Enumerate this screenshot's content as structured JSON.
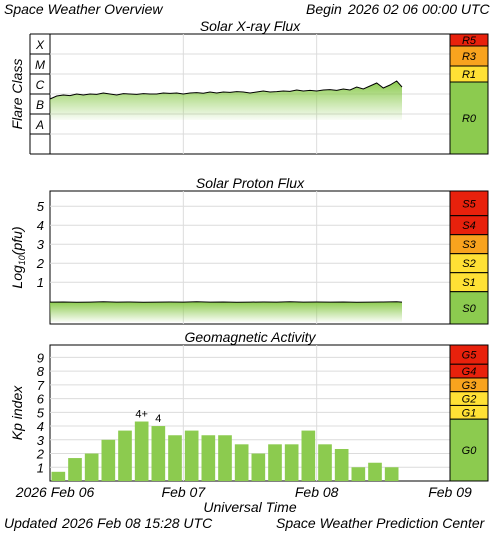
{
  "header": {
    "title": "Space Weather Overview",
    "begin_label": "Begin",
    "begin_value": "2026 02 06 00:00 UTC"
  },
  "footer": {
    "updated_label": "Updated",
    "updated_value": "2026 Feb 08 15:28 UTC",
    "center": "Space Weather Prediction Center",
    "xaxis_title": "Universal Time"
  },
  "time_axis": {
    "ticks": [
      {
        "label": "2026 Feb 06",
        "day": 0
      },
      {
        "label": "Feb 07",
        "day": 1
      },
      {
        "label": "Feb 08",
        "day": 2
      },
      {
        "label": "Feb 09",
        "day": 3
      }
    ],
    "range_days": [
      0,
      3
    ]
  },
  "colors": {
    "data_green": "#8ccb4f",
    "scale_green": "#8ccb4f",
    "scale_yellow": "#ffe135",
    "scale_orange": "#f8a31e",
    "scale_red": "#e8210c",
    "grid": "#dcdcdc"
  },
  "chart_data": [
    {
      "type": "area",
      "title": "Solar X-ray Flux",
      "ylabel": "Flare Class",
      "y_classes": [
        "X",
        "M",
        "C",
        "B",
        "A"
      ],
      "ylim_log10_wm2": [
        -9,
        -3
      ],
      "series": [
        {
          "x_days": [
            0.0,
            0.05,
            0.1,
            0.15,
            0.2,
            0.25,
            0.3,
            0.35,
            0.4,
            0.45,
            0.5,
            0.55,
            0.6,
            0.65,
            0.7,
            0.75,
            0.8,
            0.85,
            0.9,
            0.95,
            1.0,
            1.05,
            1.1,
            1.15,
            1.2,
            1.25,
            1.3,
            1.35,
            1.4,
            1.45,
            1.5,
            1.55,
            1.6,
            1.65,
            1.7,
            1.75,
            1.8,
            1.85,
            1.9,
            1.95,
            2.0,
            2.05,
            2.1,
            2.15,
            2.2,
            2.25,
            2.3,
            2.35,
            2.4,
            2.45,
            2.5,
            2.55,
            2.6,
            2.64
          ],
          "values_log10_wm2": [
            -6.25,
            -6.1,
            -6.05,
            -6.08,
            -6.0,
            -6.05,
            -6.0,
            -6.02,
            -5.95,
            -6.0,
            -6.05,
            -5.98,
            -6.0,
            -6.02,
            -5.98,
            -6.0,
            -6.0,
            -5.95,
            -5.97,
            -5.95,
            -6.0,
            -5.95,
            -5.93,
            -5.96,
            -5.9,
            -5.95,
            -5.9,
            -5.92,
            -5.88,
            -5.9,
            -5.95,
            -5.9,
            -5.85,
            -5.9,
            -5.88,
            -5.85,
            -5.87,
            -5.8,
            -5.85,
            -5.82,
            -5.85,
            -5.8,
            -5.78,
            -5.82,
            -5.75,
            -5.8,
            -5.65,
            -5.75,
            -5.6,
            -5.45,
            -5.7,
            -5.55,
            -5.35,
            -5.65
          ]
        }
      ],
      "scale": [
        {
          "label": "R5",
          "color": "red"
        },
        {
          "label": "R3",
          "color": "orange"
        },
        {
          "label": "R1",
          "color": "yellow"
        },
        {
          "label": "R0",
          "color": "green"
        }
      ]
    },
    {
      "type": "area",
      "title": "Solar Proton Flux",
      "ylabel": "Log10(pfu)",
      "ylabel_base": "Log",
      "ylabel_sub": "10",
      "ylabel_unit": "(pfu)",
      "yticks": [
        1,
        2,
        3,
        4,
        5
      ],
      "ylim": [
        -1.2,
        5.8
      ],
      "series": [
        {
          "x_days": [
            0.0,
            0.1,
            0.2,
            0.3,
            0.4,
            0.5,
            0.6,
            0.7,
            0.8,
            0.9,
            1.0,
            1.1,
            1.2,
            1.3,
            1.4,
            1.5,
            1.6,
            1.7,
            1.8,
            1.9,
            2.0,
            2.1,
            2.2,
            2.3,
            2.4,
            2.5,
            2.6,
            2.64
          ],
          "values": [
            -0.05,
            -0.04,
            -0.06,
            -0.05,
            -0.03,
            -0.05,
            -0.04,
            -0.06,
            -0.05,
            -0.04,
            -0.05,
            -0.03,
            -0.05,
            -0.04,
            -0.06,
            -0.05,
            -0.04,
            -0.05,
            -0.03,
            -0.05,
            -0.04,
            -0.05,
            -0.04,
            -0.06,
            -0.05,
            -0.04,
            -0.03,
            -0.05
          ]
        }
      ],
      "scale": [
        {
          "label": "S5",
          "color": "red"
        },
        {
          "label": "S4",
          "color": "red"
        },
        {
          "label": "S3",
          "color": "orange"
        },
        {
          "label": "S2",
          "color": "yellow"
        },
        {
          "label": "S1",
          "color": "yellow"
        },
        {
          "label": "S0",
          "color": "green"
        }
      ]
    },
    {
      "type": "bar",
      "title": "Geomagnetic Activity",
      "ylabel": "Kp index",
      "yticks": [
        1,
        2,
        3,
        4,
        5,
        6,
        7,
        8,
        9
      ],
      "ylim": [
        0,
        9.9
      ],
      "x_start_days": [
        0.0,
        0.125,
        0.25,
        0.375,
        0.5,
        0.625,
        0.75,
        0.875,
        1.0,
        1.125,
        1.25,
        1.375,
        1.5,
        1.625,
        1.75,
        1.875,
        2.0,
        2.125,
        2.25,
        2.375,
        2.5,
        2.625
      ],
      "values": [
        0.67,
        1.67,
        2.0,
        3.0,
        3.67,
        4.33,
        4.0,
        3.33,
        3.67,
        3.33,
        3.33,
        2.67,
        2.0,
        2.67,
        2.67,
        3.67,
        2.67,
        2.33,
        1.0,
        1.33,
        1.0,
        0.0
      ],
      "annotations": [
        {
          "index": 5,
          "text": "4+"
        },
        {
          "index": 6,
          "text": "4"
        }
      ],
      "scale": [
        {
          "label": "G5",
          "color": "red"
        },
        {
          "label": "G4",
          "color": "red"
        },
        {
          "label": "G3",
          "color": "orange"
        },
        {
          "label": "G2",
          "color": "yellow"
        },
        {
          "label": "G1",
          "color": "yellow"
        },
        {
          "label": "G0",
          "color": "green"
        }
      ]
    }
  ]
}
